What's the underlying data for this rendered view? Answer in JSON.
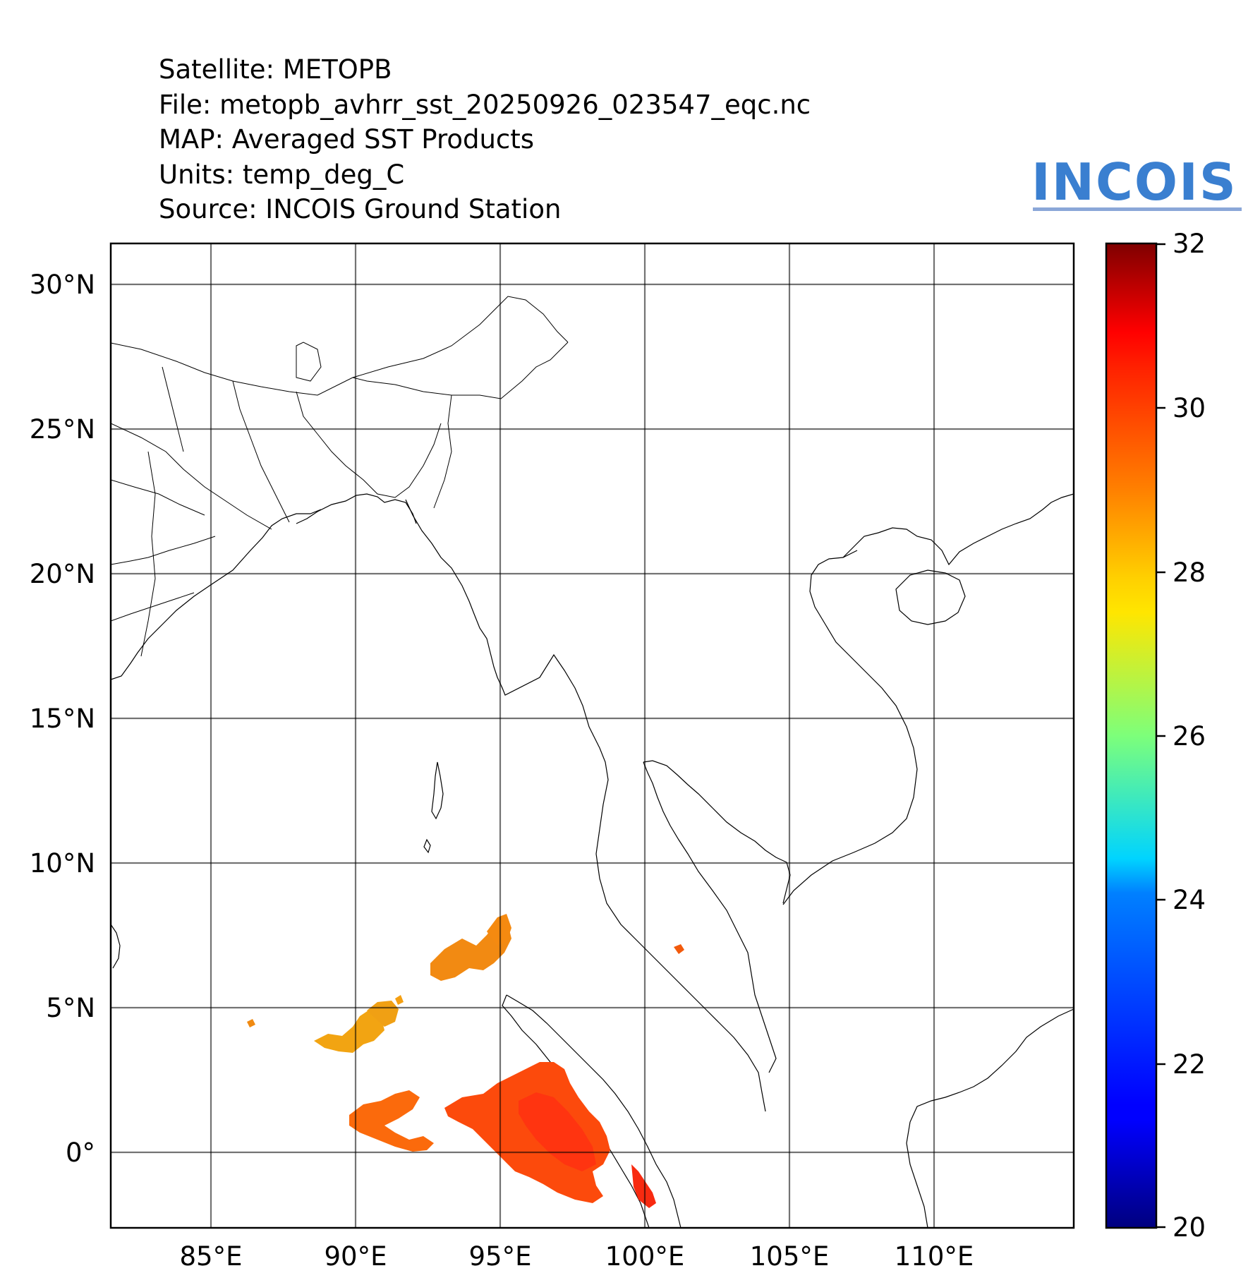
{
  "header": {
    "satellite": "Satellite: METOPB",
    "file": "File: metopb_avhrr_sst_20250926_023547_eqc.nc",
    "map": "MAP: Averaged SST Products",
    "units": "Units: temp_deg_C",
    "source": "Source: INCOIS Ground Station"
  },
  "logo": {
    "text": "INCOIS",
    "color": "#3a7fd0"
  },
  "map": {
    "lon_range": [
      81.5,
      114.8
    ],
    "lat_range": [
      -2.6,
      31.4
    ],
    "lon_ticks": [
      {
        "value": 85,
        "label": "85°E"
      },
      {
        "value": 90,
        "label": "90°E"
      },
      {
        "value": 95,
        "label": "95°E"
      },
      {
        "value": 100,
        "label": "100°E"
      },
      {
        "value": 105,
        "label": "105°E"
      },
      {
        "value": 110,
        "label": "110°E"
      }
    ],
    "lat_ticks": [
      {
        "value": 30,
        "label": "30°N"
      },
      {
        "value": 25,
        "label": "25°N"
      },
      {
        "value": 20,
        "label": "20°N"
      },
      {
        "value": 15,
        "label": "15°N"
      },
      {
        "value": 10,
        "label": "10°N"
      },
      {
        "value": 5,
        "label": "5°N"
      },
      {
        "value": 0,
        "label": "0°"
      }
    ],
    "grid": true
  },
  "colorbar": {
    "range": [
      20,
      32
    ],
    "colormap": "jet",
    "ticks": [
      {
        "value": 32,
        "label": "32"
      },
      {
        "value": 30,
        "label": "30"
      },
      {
        "value": 28,
        "label": "28"
      },
      {
        "value": 26,
        "label": "26"
      },
      {
        "value": 24,
        "label": "24"
      },
      {
        "value": 22,
        "label": "22"
      },
      {
        "value": 20,
        "label": "20"
      }
    ]
  },
  "sst_patches": [
    {
      "lon": 93.8,
      "lat": 6.5,
      "value": 29.2
    },
    {
      "lon": 95.0,
      "lat": 7.0,
      "value": 29.3
    },
    {
      "lon": 90.8,
      "lat": 4.2,
      "value": 28.6
    },
    {
      "lon": 89.5,
      "lat": 3.8,
      "value": 28.8
    },
    {
      "lon": 91.5,
      "lat": 1.8,
      "value": 29.7
    },
    {
      "lon": 90.5,
      "lat": 1.2,
      "value": 29.8
    },
    {
      "lon": 93.5,
      "lat": 1.5,
      "value": 30.4
    },
    {
      "lon": 95.5,
      "lat": 2.5,
      "value": 30.6
    },
    {
      "lon": 96.5,
      "lat": 1.5,
      "value": 30.9
    },
    {
      "lon": 97.0,
      "lat": 0.3,
      "value": 30.8
    },
    {
      "lon": 98.0,
      "lat": 0.8,
      "value": 31.0
    },
    {
      "lon": 97.5,
      "lat": -0.5,
      "value": 30.9
    },
    {
      "lon": 99.7,
      "lat": -0.9,
      "value": 30.7
    },
    {
      "lon": 101.0,
      "lat": 7.0,
      "value": 30.9
    }
  ]
}
